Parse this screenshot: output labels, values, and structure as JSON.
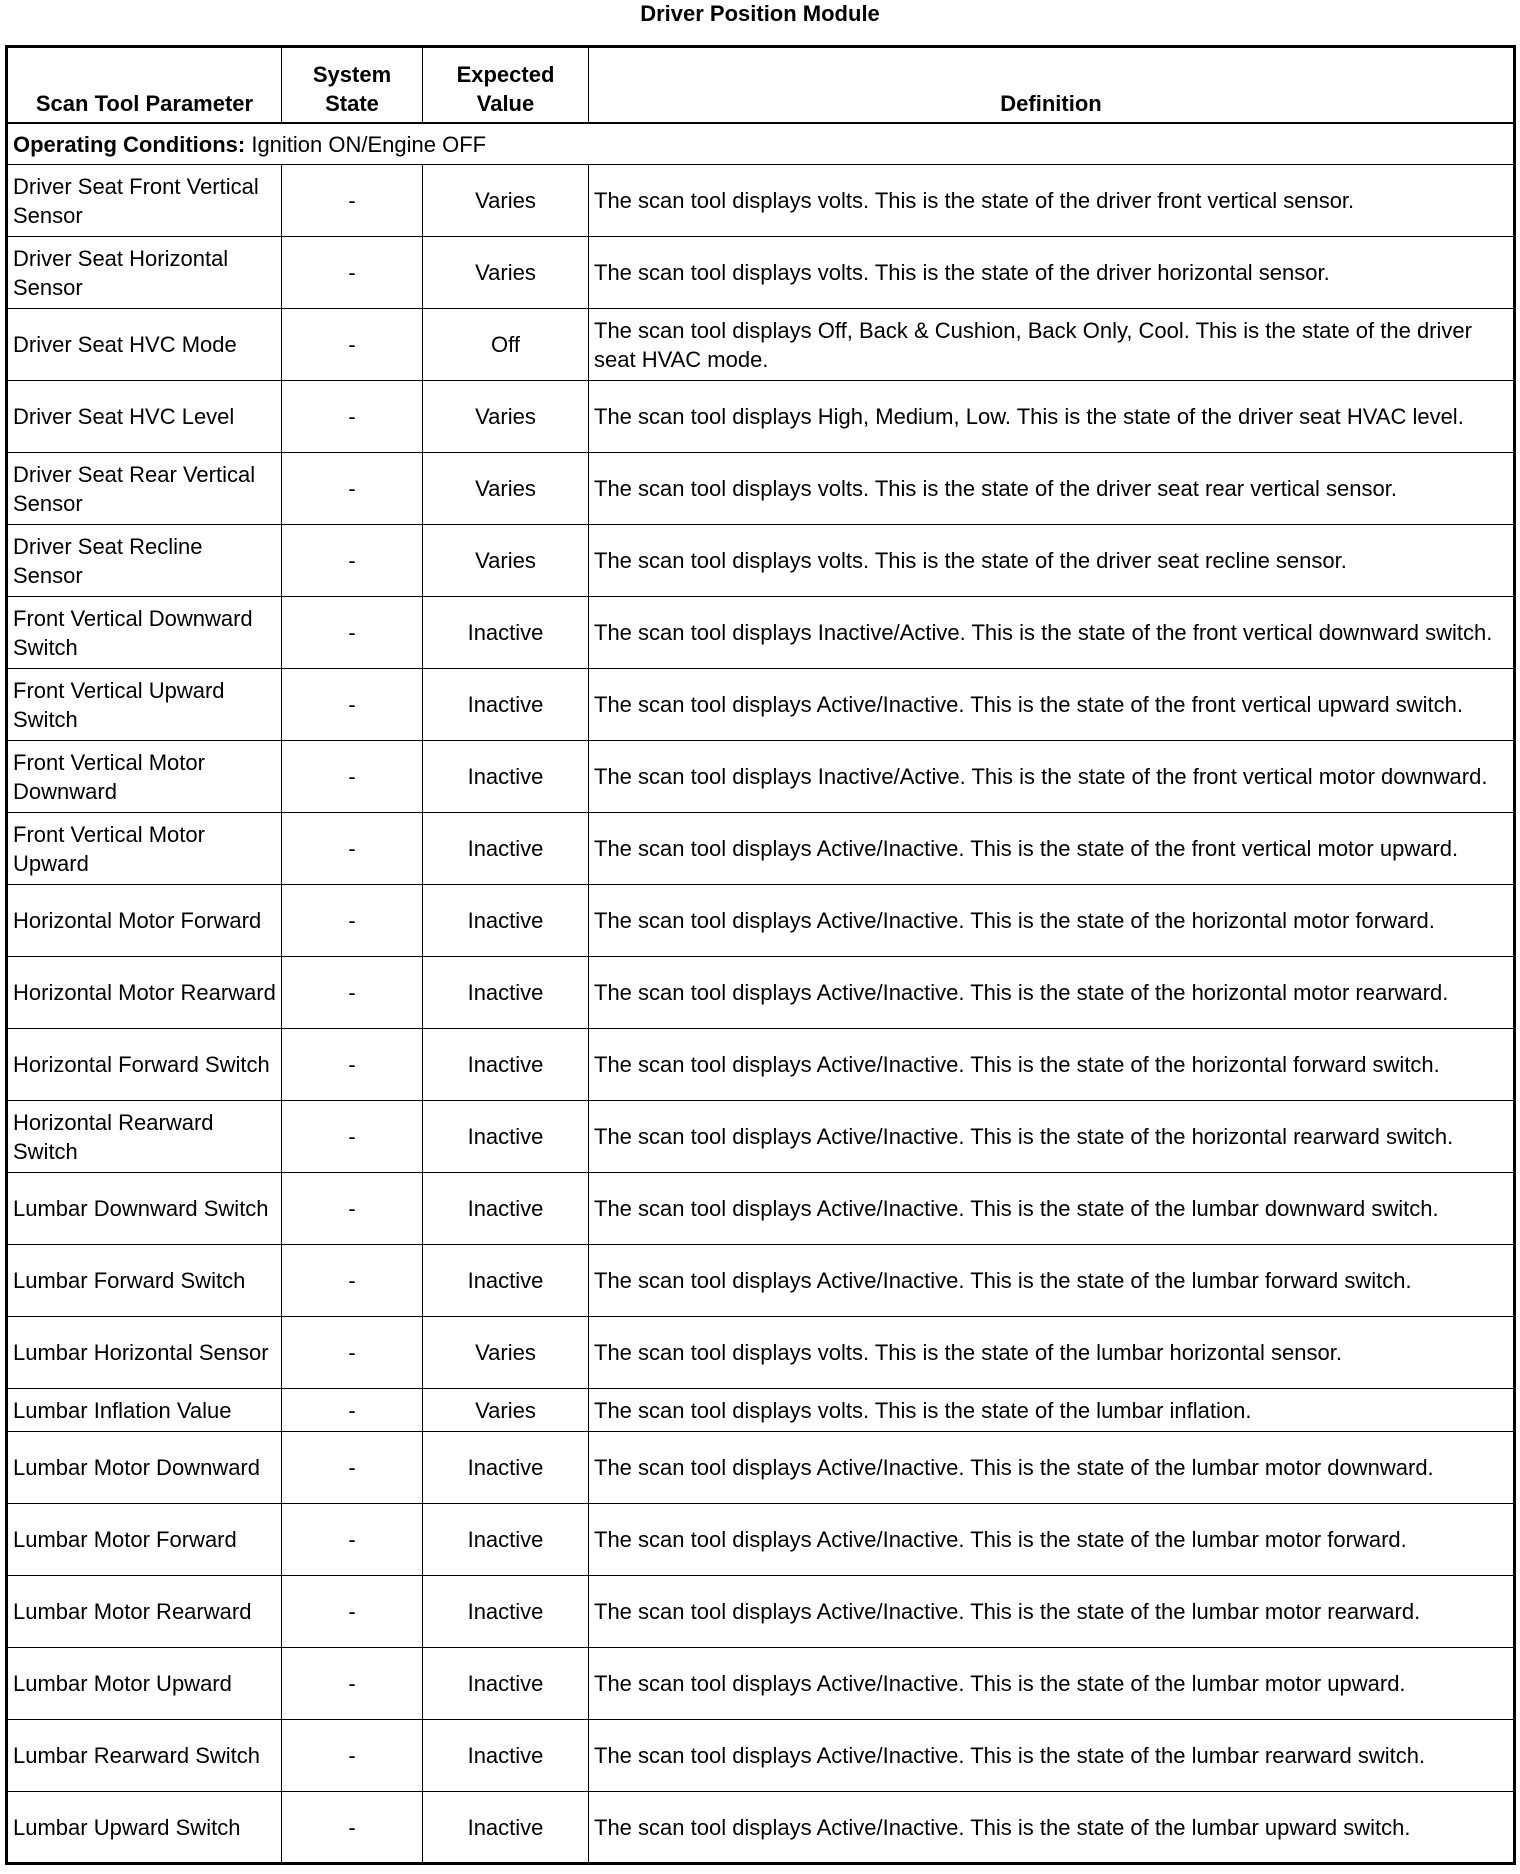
{
  "title": "Driver Position Module",
  "headers": [
    "Scan Tool Parameter",
    "System State",
    "Expected Value",
    "Definition"
  ],
  "conditions": {
    "label": "Operating Conditions:",
    "value": "Ignition ON/Engine OFF"
  },
  "rows": [
    {
      "param": "Driver Seat Front Vertical Sensor",
      "state": "-",
      "value": "Varies",
      "def": "The scan tool displays volts. This is the state of the driver front vertical sensor."
    },
    {
      "param": "Driver Seat Horizontal Sensor",
      "state": "-",
      "value": "Varies",
      "def": "The scan tool displays volts. This is the state of the driver horizontal sensor."
    },
    {
      "param": "Driver Seat HVC Mode",
      "state": "-",
      "value": "Off",
      "def": "The scan tool displays Off, Back & Cushion, Back Only, Cool. This is the state of the driver seat HVAC mode."
    },
    {
      "param": "Driver Seat HVC Level",
      "state": "-",
      "value": "Varies",
      "def": "The scan tool displays High, Medium, Low. This is the state of the driver seat HVAC level."
    },
    {
      "param": "Driver Seat Rear Vertical Sensor",
      "state": "-",
      "value": "Varies",
      "def": "The scan tool displays volts. This is the state of the driver seat rear vertical sensor."
    },
    {
      "param": "Driver Seat Recline Sensor",
      "state": "-",
      "value": "Varies",
      "def": "The scan tool displays volts. This is the state of the driver seat recline sensor."
    },
    {
      "param": "Front Vertical Downward Switch",
      "state": "-",
      "value": "Inactive",
      "def": "The scan tool displays Inactive/Active. This is the state of the front vertical downward switch."
    },
    {
      "param": "Front Vertical Upward Switch",
      "state": "-",
      "value": "Inactive",
      "def": "The scan tool displays Active/Inactive. This is the state of the front vertical upward switch."
    },
    {
      "param": "Front Vertical Motor Downward",
      "state": "-",
      "value": "Inactive",
      "def": "The scan tool displays Inactive/Active. This is the state of the front vertical motor downward."
    },
    {
      "param": "Front Vertical Motor Upward",
      "state": "-",
      "value": "Inactive",
      "def": "The scan tool displays Active/Inactive. This is the state of the front vertical motor upward."
    },
    {
      "param": "Horizontal Motor Forward",
      "state": "-",
      "value": "Inactive",
      "def": "The scan tool displays Active/Inactive. This is the state of the horizontal motor forward."
    },
    {
      "param": "Horizontal Motor Rearward",
      "state": "-",
      "value": "Inactive",
      "def": "The scan tool displays Active/Inactive. This is the state of the horizontal motor rearward."
    },
    {
      "param": "Horizontal Forward Switch",
      "state": "-",
      "value": "Inactive",
      "def": "The scan tool displays Active/Inactive. This is the state of the horizontal forward switch."
    },
    {
      "param": "Horizontal Rearward Switch",
      "state": "-",
      "value": "Inactive",
      "def": "The scan tool displays Active/Inactive. This is the state of the horizontal rearward switch."
    },
    {
      "param": "Lumbar Downward Switch",
      "state": "-",
      "value": "Inactive",
      "def": "The scan tool displays Active/Inactive. This is the state of the lumbar downward switch."
    },
    {
      "param": "Lumbar Forward Switch",
      "state": "-",
      "value": "Inactive",
      "def": "The scan tool displays Active/Inactive. This is the state of the lumbar forward switch."
    },
    {
      "param": "Lumbar Horizontal Sensor",
      "state": "-",
      "value": "Varies",
      "def": "The scan tool displays volts. This is the state of the lumbar horizontal sensor."
    },
    {
      "param": "Lumbar Inflation Value",
      "state": "-",
      "value": "Varies",
      "def": "The scan tool displays volts. This is the state of the lumbar inflation."
    },
    {
      "param": "Lumbar Motor Downward",
      "state": "-",
      "value": "Inactive",
      "def": "The scan tool displays Active/Inactive. This is the state of the lumbar motor downward."
    },
    {
      "param": "Lumbar Motor Forward",
      "state": "-",
      "value": "Inactive",
      "def": "The scan tool displays Active/Inactive. This is the state of the lumbar motor forward."
    },
    {
      "param": "Lumbar Motor Rearward",
      "state": "-",
      "value": "Inactive",
      "def": "The scan tool displays Active/Inactive. This is the state of the lumbar motor rearward."
    },
    {
      "param": "Lumbar Motor Upward",
      "state": "-",
      "value": "Inactive",
      "def": "The scan tool displays Active/Inactive. This is the state of the lumbar motor upward."
    },
    {
      "param": "Lumbar Rearward Switch",
      "state": "-",
      "value": "Inactive",
      "def": "The scan tool displays Active/Inactive. This is the state of the lumbar rearward switch."
    },
    {
      "param": "Lumbar Upward Switch",
      "state": "-",
      "value": "Inactive",
      "def": "The scan tool displays Active/Inactive. This is the state of the lumbar upward switch."
    }
  ]
}
